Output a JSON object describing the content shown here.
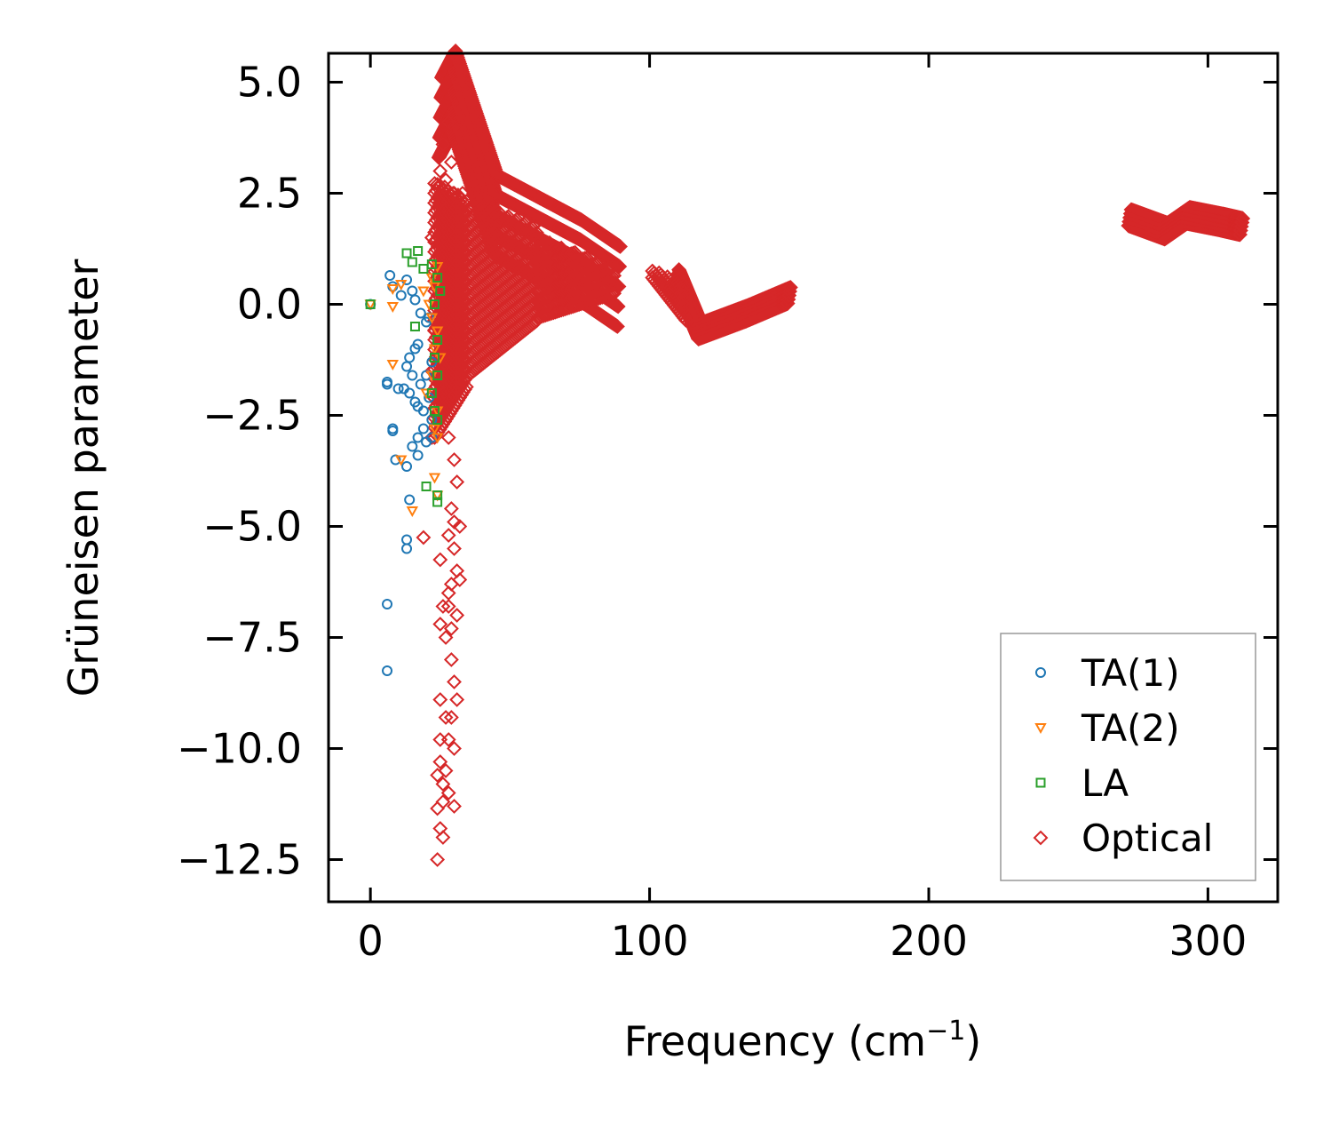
{
  "chart_data": {
    "type": "scatter",
    "title": "",
    "xlabel": "Frequency (cm",
    "xlabel_sup": "−1",
    "xlabel_close": ")",
    "ylabel": "Grüneisen parameter",
    "xlim": [
      -15,
      325
    ],
    "ylim": [
      -13.45,
      5.65
    ],
    "xticks": [
      0,
      100,
      200,
      300
    ],
    "xtick_labels": [
      "0",
      "100",
      "200",
      "300"
    ],
    "yticks": [
      5.0,
      2.5,
      0.0,
      -2.5,
      -5.0,
      -7.5,
      -10.0,
      -12.5
    ],
    "ytick_labels": [
      "5.0",
      "2.5",
      "0.0",
      "−2.5",
      "−5.0",
      "−7.5",
      "−10.0",
      "−12.5"
    ],
    "grid": false,
    "legend_position": "lower-right",
    "series": [
      {
        "name": "TA(1)",
        "marker": "circle",
        "color": "#1f77b4",
        "points": [
          [
            0,
            0
          ],
          [
            7,
            0.65
          ],
          [
            8,
            0.4
          ],
          [
            11,
            0.2
          ],
          [
            13,
            0.55
          ],
          [
            15,
            0.3
          ],
          [
            16,
            0.1
          ],
          [
            18,
            -0.2
          ],
          [
            20,
            -0.4
          ],
          [
            21,
            -0.3
          ],
          [
            17,
            -0.9
          ],
          [
            16,
            -1.0
          ],
          [
            14,
            -1.2
          ],
          [
            13,
            -1.4
          ],
          [
            15,
            -1.6
          ],
          [
            18,
            -1.8
          ],
          [
            20,
            -1.6
          ],
          [
            22,
            -1.3
          ],
          [
            6,
            -1.75
          ],
          [
            6,
            -1.8
          ],
          [
            10,
            -1.9
          ],
          [
            12,
            -1.9
          ],
          [
            14,
            -2.0
          ],
          [
            16,
            -2.2
          ],
          [
            17,
            -2.3
          ],
          [
            19,
            -2.4
          ],
          [
            21,
            -2.1
          ],
          [
            22,
            -2.6
          ],
          [
            19,
            -2.8
          ],
          [
            17,
            -3.0
          ],
          [
            15,
            -3.2
          ],
          [
            17,
            -3.4
          ],
          [
            20,
            -3.1
          ],
          [
            22,
            -3.0
          ],
          [
            8,
            -2.8
          ],
          [
            8,
            -2.85
          ],
          [
            9,
            -3.5
          ],
          [
            13,
            -3.65
          ],
          [
            14,
            -4.4
          ],
          [
            13,
            -5.3
          ],
          [
            13,
            -5.5
          ],
          [
            6,
            -6.75
          ],
          [
            6,
            -8.25
          ]
        ]
      },
      {
        "name": "TA(2)",
        "marker": "triangle-down",
        "color": "#ff7f0e",
        "points": [
          [
            0,
            0
          ],
          [
            8,
            0.35
          ],
          [
            11,
            0.45
          ],
          [
            8,
            -0.05
          ],
          [
            19,
            0.3
          ],
          [
            22,
            0.6
          ],
          [
            24,
            0.85
          ],
          [
            23,
            0.4
          ],
          [
            21,
            0.0
          ],
          [
            22,
            -0.3
          ],
          [
            24,
            -0.6
          ],
          [
            23,
            -1.0
          ],
          [
            25,
            -1.2
          ],
          [
            22,
            -1.6
          ],
          [
            8,
            -1.35
          ],
          [
            20,
            -2.0
          ],
          [
            24,
            -2.4
          ],
          [
            23,
            -2.8
          ],
          [
            24,
            -3.0
          ],
          [
            11,
            -3.5
          ],
          [
            23,
            -3.9
          ],
          [
            24,
            -4.3
          ],
          [
            15,
            -4.65
          ]
        ]
      },
      {
        "name": "LA",
        "marker": "square",
        "color": "#2ca02c",
        "points": [
          [
            0,
            0
          ],
          [
            13,
            1.15
          ],
          [
            17,
            1.2
          ],
          [
            15,
            0.95
          ],
          [
            19,
            0.8
          ],
          [
            22,
            0.9
          ],
          [
            24,
            0.6
          ],
          [
            25,
            0.3
          ],
          [
            23,
            0.0
          ],
          [
            16,
            -0.5
          ],
          [
            24,
            -0.8
          ],
          [
            23,
            -1.2
          ],
          [
            24,
            -1.6
          ],
          [
            22,
            -2.0
          ],
          [
            23,
            -2.4
          ],
          [
            24,
            -2.6
          ],
          [
            20,
            -4.1
          ],
          [
            24,
            -4.3
          ],
          [
            24,
            -4.45
          ]
        ]
      },
      {
        "name": "Optical",
        "marker": "diamond",
        "color": "#d62728",
        "dense_points": [
          [
            25,
            4.2
          ],
          [
            30,
            4.8
          ],
          [
            45,
            2.0
          ],
          [
            60,
            1.5
          ],
          [
            75,
            1.0
          ],
          [
            89,
            0.4
          ],
          [
            110,
            0.6
          ],
          [
            118,
            -0.6
          ],
          [
            135,
            -0.2
          ],
          [
            150,
            0.2
          ],
          [
            272,
            1.95
          ],
          [
            285,
            1.65
          ],
          [
            293,
            2.0
          ],
          [
            305,
            1.85
          ],
          [
            312,
            1.75
          ],
          [
            34,
            -1.5
          ],
          [
            34,
            -3.5
          ],
          [
            33,
            -3.2
          ],
          [
            32,
            -0.2
          ],
          [
            40,
            0.0
          ],
          [
            40,
            -1.6
          ],
          [
            55,
            -0.8
          ]
        ],
        "points": [
          [
            34,
            4.8
          ],
          [
            28,
            4.1
          ],
          [
            30,
            4.0
          ],
          [
            32,
            3.9
          ],
          [
            26,
            3.6
          ],
          [
            29,
            3.2
          ],
          [
            25,
            3.0
          ],
          [
            27,
            2.8
          ],
          [
            24,
            2.7
          ],
          [
            30,
            2.5
          ],
          [
            25,
            2.3
          ],
          [
            33,
            2.5
          ],
          [
            37,
            2.8
          ],
          [
            22,
            1.5
          ],
          [
            23,
            -0.6
          ],
          [
            22,
            -1.5
          ],
          [
            25,
            -1.8
          ],
          [
            22,
            -3.0
          ],
          [
            30,
            -3.5
          ],
          [
            28,
            -3.0
          ],
          [
            31,
            -4.0
          ],
          [
            29,
            -4.6
          ],
          [
            30,
            -4.9
          ],
          [
            28,
            -5.2
          ],
          [
            25,
            -5.75
          ],
          [
            19,
            -5.25
          ],
          [
            32,
            -5.0
          ],
          [
            30,
            -5.5
          ],
          [
            31,
            -6.0
          ],
          [
            29,
            -6.3
          ],
          [
            28,
            -6.5
          ],
          [
            32,
            -6.2
          ],
          [
            28,
            -6.8
          ],
          [
            26,
            -6.8
          ],
          [
            25,
            -7.2
          ],
          [
            29,
            -7.3
          ],
          [
            31,
            -7.0
          ],
          [
            27,
            -7.5
          ],
          [
            29,
            -8.0
          ],
          [
            30,
            -8.5
          ],
          [
            25,
            -8.9
          ],
          [
            31,
            -8.9
          ],
          [
            27,
            -9.3
          ],
          [
            29,
            -9.3
          ],
          [
            25,
            -9.8
          ],
          [
            28,
            -9.8
          ],
          [
            30,
            -10.0
          ],
          [
            25,
            -10.3
          ],
          [
            27,
            -10.5
          ],
          [
            24,
            -10.6
          ],
          [
            26,
            -10.8
          ],
          [
            28,
            -11.0
          ],
          [
            26,
            -11.2
          ],
          [
            24,
            -11.35
          ],
          [
            30,
            -11.3
          ],
          [
            25,
            -11.8
          ],
          [
            26,
            -12.0
          ],
          [
            24,
            -12.5
          ]
        ]
      }
    ]
  }
}
